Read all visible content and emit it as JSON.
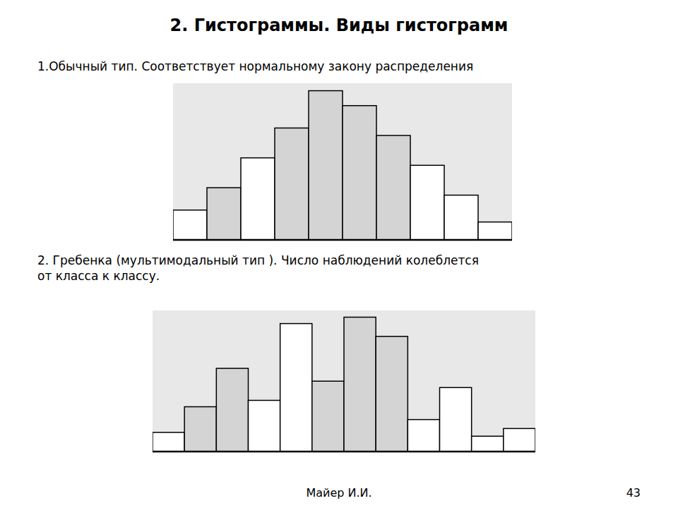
{
  "title": "2. Гистограммы. Виды гистограмм",
  "annotations": [
    "Майер И.И.",
    "43"
  ],
  "chart_data": [
    {
      "type": "bar",
      "title": "1.Обычный тип. Соответствует нормальному закону распределения",
      "values": [
        2,
        3.5,
        5.5,
        7.5,
        10,
        9,
        7,
        5,
        3,
        1.2
      ],
      "colors": [
        "#ffffff",
        "#d4d4d4",
        "#ffffff",
        "#d4d4d4",
        "#d4d4d4",
        "#d4d4d4",
        "#d4d4d4",
        "#ffffff",
        "#ffffff",
        "#ffffff"
      ],
      "ylim": [
        0,
        10.5
      ],
      "tick_labels": false,
      "grid": false
    },
    {
      "type": "bar",
      "title": "2. Гребенка (мультимодальный тип ). Число наблюдений колеблется\nот класса к классу.",
      "values": [
        1.5,
        3.5,
        6.5,
        4.0,
        10,
        5.5,
        10.5,
        9,
        2.5,
        5.0,
        1.2,
        1.8
      ],
      "colors": [
        "#ffffff",
        "#d4d4d4",
        "#d4d4d4",
        "#ffffff",
        "#ffffff",
        "#d4d4d4",
        "#d4d4d4",
        "#d4d4d4",
        "#ffffff",
        "#ffffff",
        "#ffffff",
        "#ffffff"
      ],
      "ylim": [
        0,
        11.025
      ],
      "tick_labels": false,
      "grid": false
    }
  ]
}
